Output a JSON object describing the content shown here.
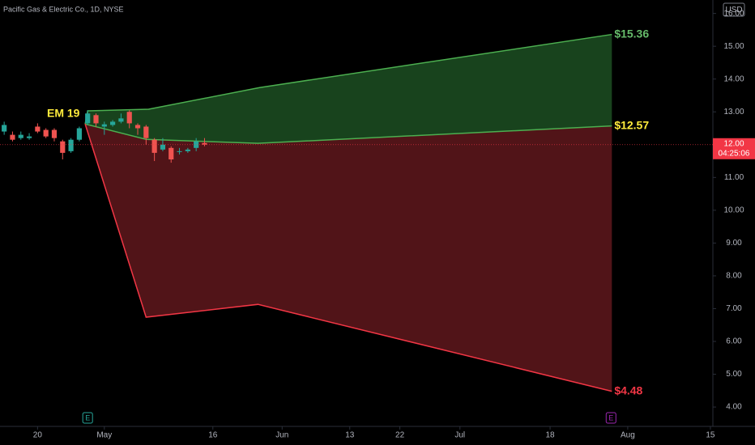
{
  "chart_data": {
    "type": "candlestick",
    "title": "Pacific Gas & Electric Co., 1D, NYSE",
    "currency": "USD",
    "annotation": "EM 19",
    "current_price": {
      "value": 12.0,
      "label": "12.00",
      "countdown": "04:25:06",
      "color": "#f23645"
    },
    "up_color": "#26a69a",
    "down_color": "#ef5350",
    "x": [
      0,
      1,
      2,
      3,
      4,
      5,
      6,
      7,
      8,
      9,
      10,
      11,
      12,
      13,
      14,
      15,
      16,
      17,
      18,
      19,
      20,
      21,
      22,
      23,
      24
    ],
    "open": [
      12.4,
      12.3,
      12.2,
      12.2,
      12.55,
      12.45,
      12.45,
      12.1,
      11.8,
      12.15,
      12.65,
      12.9,
      12.55,
      12.6,
      12.7,
      13.0,
      12.6,
      12.55,
      12.15,
      11.85,
      11.9,
      11.8,
      11.8,
      11.9,
      12.05
    ],
    "high": [
      12.7,
      12.4,
      12.4,
      12.35,
      12.65,
      12.5,
      12.5,
      12.15,
      12.2,
      12.55,
      13.05,
      12.95,
      12.7,
      12.75,
      12.95,
      13.05,
      12.65,
      12.6,
      12.2,
      12.2,
      11.95,
      11.9,
      11.9,
      12.2,
      12.2
    ],
    "low": [
      12.3,
      12.1,
      12.15,
      12.15,
      12.35,
      12.2,
      12.1,
      11.55,
      11.75,
      12.1,
      12.6,
      12.55,
      12.3,
      12.55,
      12.65,
      12.5,
      12.3,
      12.0,
      11.5,
      11.8,
      11.45,
      11.7,
      11.75,
      11.8,
      11.95
    ],
    "close": [
      12.6,
      12.15,
      12.3,
      12.25,
      12.4,
      12.25,
      12.2,
      11.75,
      12.15,
      12.5,
      12.95,
      12.65,
      12.62,
      12.7,
      12.8,
      12.65,
      12.5,
      12.2,
      11.75,
      12.0,
      11.55,
      11.8,
      11.85,
      12.1,
      12.0
    ],
    "series": [
      {
        "name": "upper",
        "color": "#4caf50",
        "fill": "#1b4a20",
        "label_color": "#66bb6a",
        "x": [
          9.7,
          10.0,
          17.3,
          30.6,
          72.8
        ],
        "values": [
          12.63,
          13.03,
          13.08,
          13.74,
          15.36
        ],
        "value_labels": [
          null,
          null,
          null,
          null,
          "$15.36"
        ]
      },
      {
        "name": "mid",
        "color": "#4caf50",
        "label_color": "#ffeb3b",
        "x": [
          9.7,
          17.0,
          30.4,
          72.8
        ],
        "values": [
          12.63,
          12.16,
          12.04,
          12.57
        ],
        "value_labels": [
          null,
          null,
          null,
          "$12.57"
        ]
      },
      {
        "name": "lower",
        "color": "#f23645",
        "fill": "#5a161b",
        "label_color": "#f23645",
        "x": [
          9.7,
          17.0,
          30.4,
          72.8
        ],
        "values": [
          12.63,
          6.74,
          7.13,
          4.48
        ],
        "value_labels": [
          null,
          null,
          null,
          "$4.48"
        ]
      }
    ],
    "events": [
      {
        "label": "E",
        "x": 10.0,
        "color": "#26a69a"
      },
      {
        "label": "E",
        "x": 72.7,
        "color": "#9c27b0"
      }
    ],
    "xlim": [
      -0.5,
      84.9
    ],
    "xticks": [
      {
        "value": 4,
        "label": "20"
      },
      {
        "value": 12,
        "label": "May"
      },
      {
        "value": 25,
        "label": "16"
      },
      {
        "value": 33.3,
        "label": "Jun"
      },
      {
        "value": 41.4,
        "label": "13"
      },
      {
        "value": 47.4,
        "label": "22"
      },
      {
        "value": 54.6,
        "label": "Jul"
      },
      {
        "value": 65.4,
        "label": "18"
      },
      {
        "value": 74.7,
        "label": "Aug"
      },
      {
        "value": 84.6,
        "label": "15"
      }
    ],
    "ylim": [
      3.41,
      16.41
    ],
    "yticks": [
      {
        "value": 4,
        "label": "4.00"
      },
      {
        "value": 5,
        "label": "5.00"
      },
      {
        "value": 6,
        "label": "6.00"
      },
      {
        "value": 7,
        "label": "7.00"
      },
      {
        "value": 8,
        "label": "8.00"
      },
      {
        "value": 9,
        "label": "9.00"
      },
      {
        "value": 10,
        "label": "10.00"
      },
      {
        "value": 11,
        "label": "11.00"
      },
      {
        "value": 12,
        "label": "12.00"
      },
      {
        "value": 13,
        "label": "13.00"
      },
      {
        "value": 14,
        "label": "14.00"
      },
      {
        "value": 15,
        "label": "15.00"
      },
      {
        "value": 16,
        "label": "16.00"
      }
    ]
  }
}
